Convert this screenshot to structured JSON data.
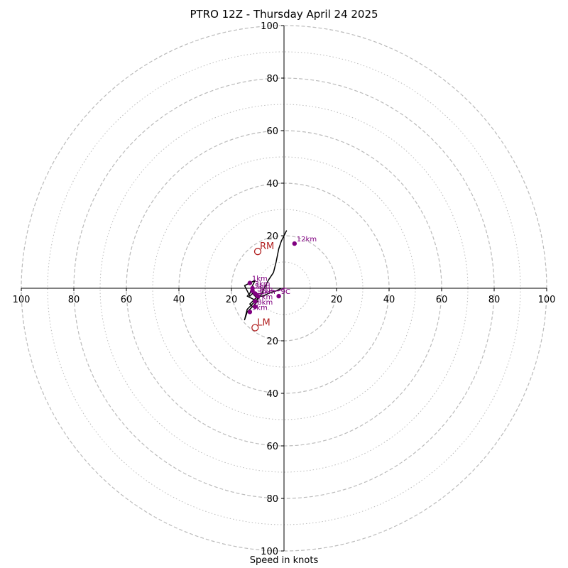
{
  "chart_data": {
    "type": "line",
    "title": "PTRO 12Z - Thursday April 24 2025",
    "xlabel": "Speed in knots",
    "ylabel": "",
    "xlim": [
      -100,
      100
    ],
    "ylim": [
      -100,
      100
    ],
    "xticks": [
      -100,
      -80,
      -60,
      -40,
      -20,
      20,
      40,
      60,
      80,
      100
    ],
    "yticks": [
      -100,
      -80,
      -60,
      -40,
      -20,
      20,
      40,
      60,
      80,
      100
    ],
    "rings_dashed": [
      20,
      40,
      60,
      80,
      100
    ],
    "rings_dotted": [
      10,
      30,
      50,
      70,
      90
    ],
    "colors": {
      "hodograph": "#000000",
      "markers": "#800080",
      "motion": "#b22222",
      "grid": "#bbbbbb"
    },
    "hodograph": {
      "u": [
        -1,
        -3,
        -6,
        -8,
        -10,
        -11,
        -12,
        -13,
        -12,
        -11,
        -10,
        -12,
        -14,
        -13,
        -12,
        -11,
        -13,
        -15,
        -13,
        -12,
        -11,
        -10,
        -11,
        -12,
        -13,
        -14,
        -15,
        -14,
        -13,
        -12,
        -11,
        -10,
        -9,
        -8,
        -6,
        -4,
        -3,
        -2,
        -1,
        1
      ],
      "v": [
        0,
        -1,
        -2,
        -3,
        -3,
        -4,
        -5,
        -6,
        -7,
        -6,
        -5,
        -4,
        -3,
        -2,
        1,
        3,
        2,
        1,
        -3,
        -2,
        -3,
        -4,
        -5,
        -6,
        -7,
        -8,
        -12,
        -9,
        -8,
        -7,
        -6,
        -4,
        -3,
        -1,
        3,
        6,
        10,
        15,
        18,
        22
      ]
    },
    "arrow_line": {
      "u": [
        -11,
        -8,
        -5,
        -2,
        0,
        1
      ],
      "v": [
        -2,
        -2,
        -1,
        -1,
        0,
        0
      ]
    },
    "height_markers": [
      {
        "label": "1km",
        "u": -13,
        "v": 2
      },
      {
        "label": "3km",
        "u": -12,
        "v": 0
      },
      {
        "label": "2km",
        "u": -12,
        "v": -1
      },
      {
        "label": "5km",
        "u": -11,
        "v": -2
      },
      {
        "label": "6km",
        "u": -10,
        "v": -3
      },
      {
        "label": "7km",
        "u": -11,
        "v": -5
      },
      {
        "label": "8km",
        "u": -11,
        "v": -7
      },
      {
        "label": "9km",
        "u": -13,
        "v": -9
      },
      {
        "label": "9C",
        "u": -2,
        "v": -3
      },
      {
        "label": "12km",
        "u": 4,
        "v": 17
      }
    ],
    "storm_motion": [
      {
        "label": "RM",
        "u": -10,
        "v": 14
      },
      {
        "label": "LM",
        "u": -11,
        "v": -15
      }
    ]
  }
}
